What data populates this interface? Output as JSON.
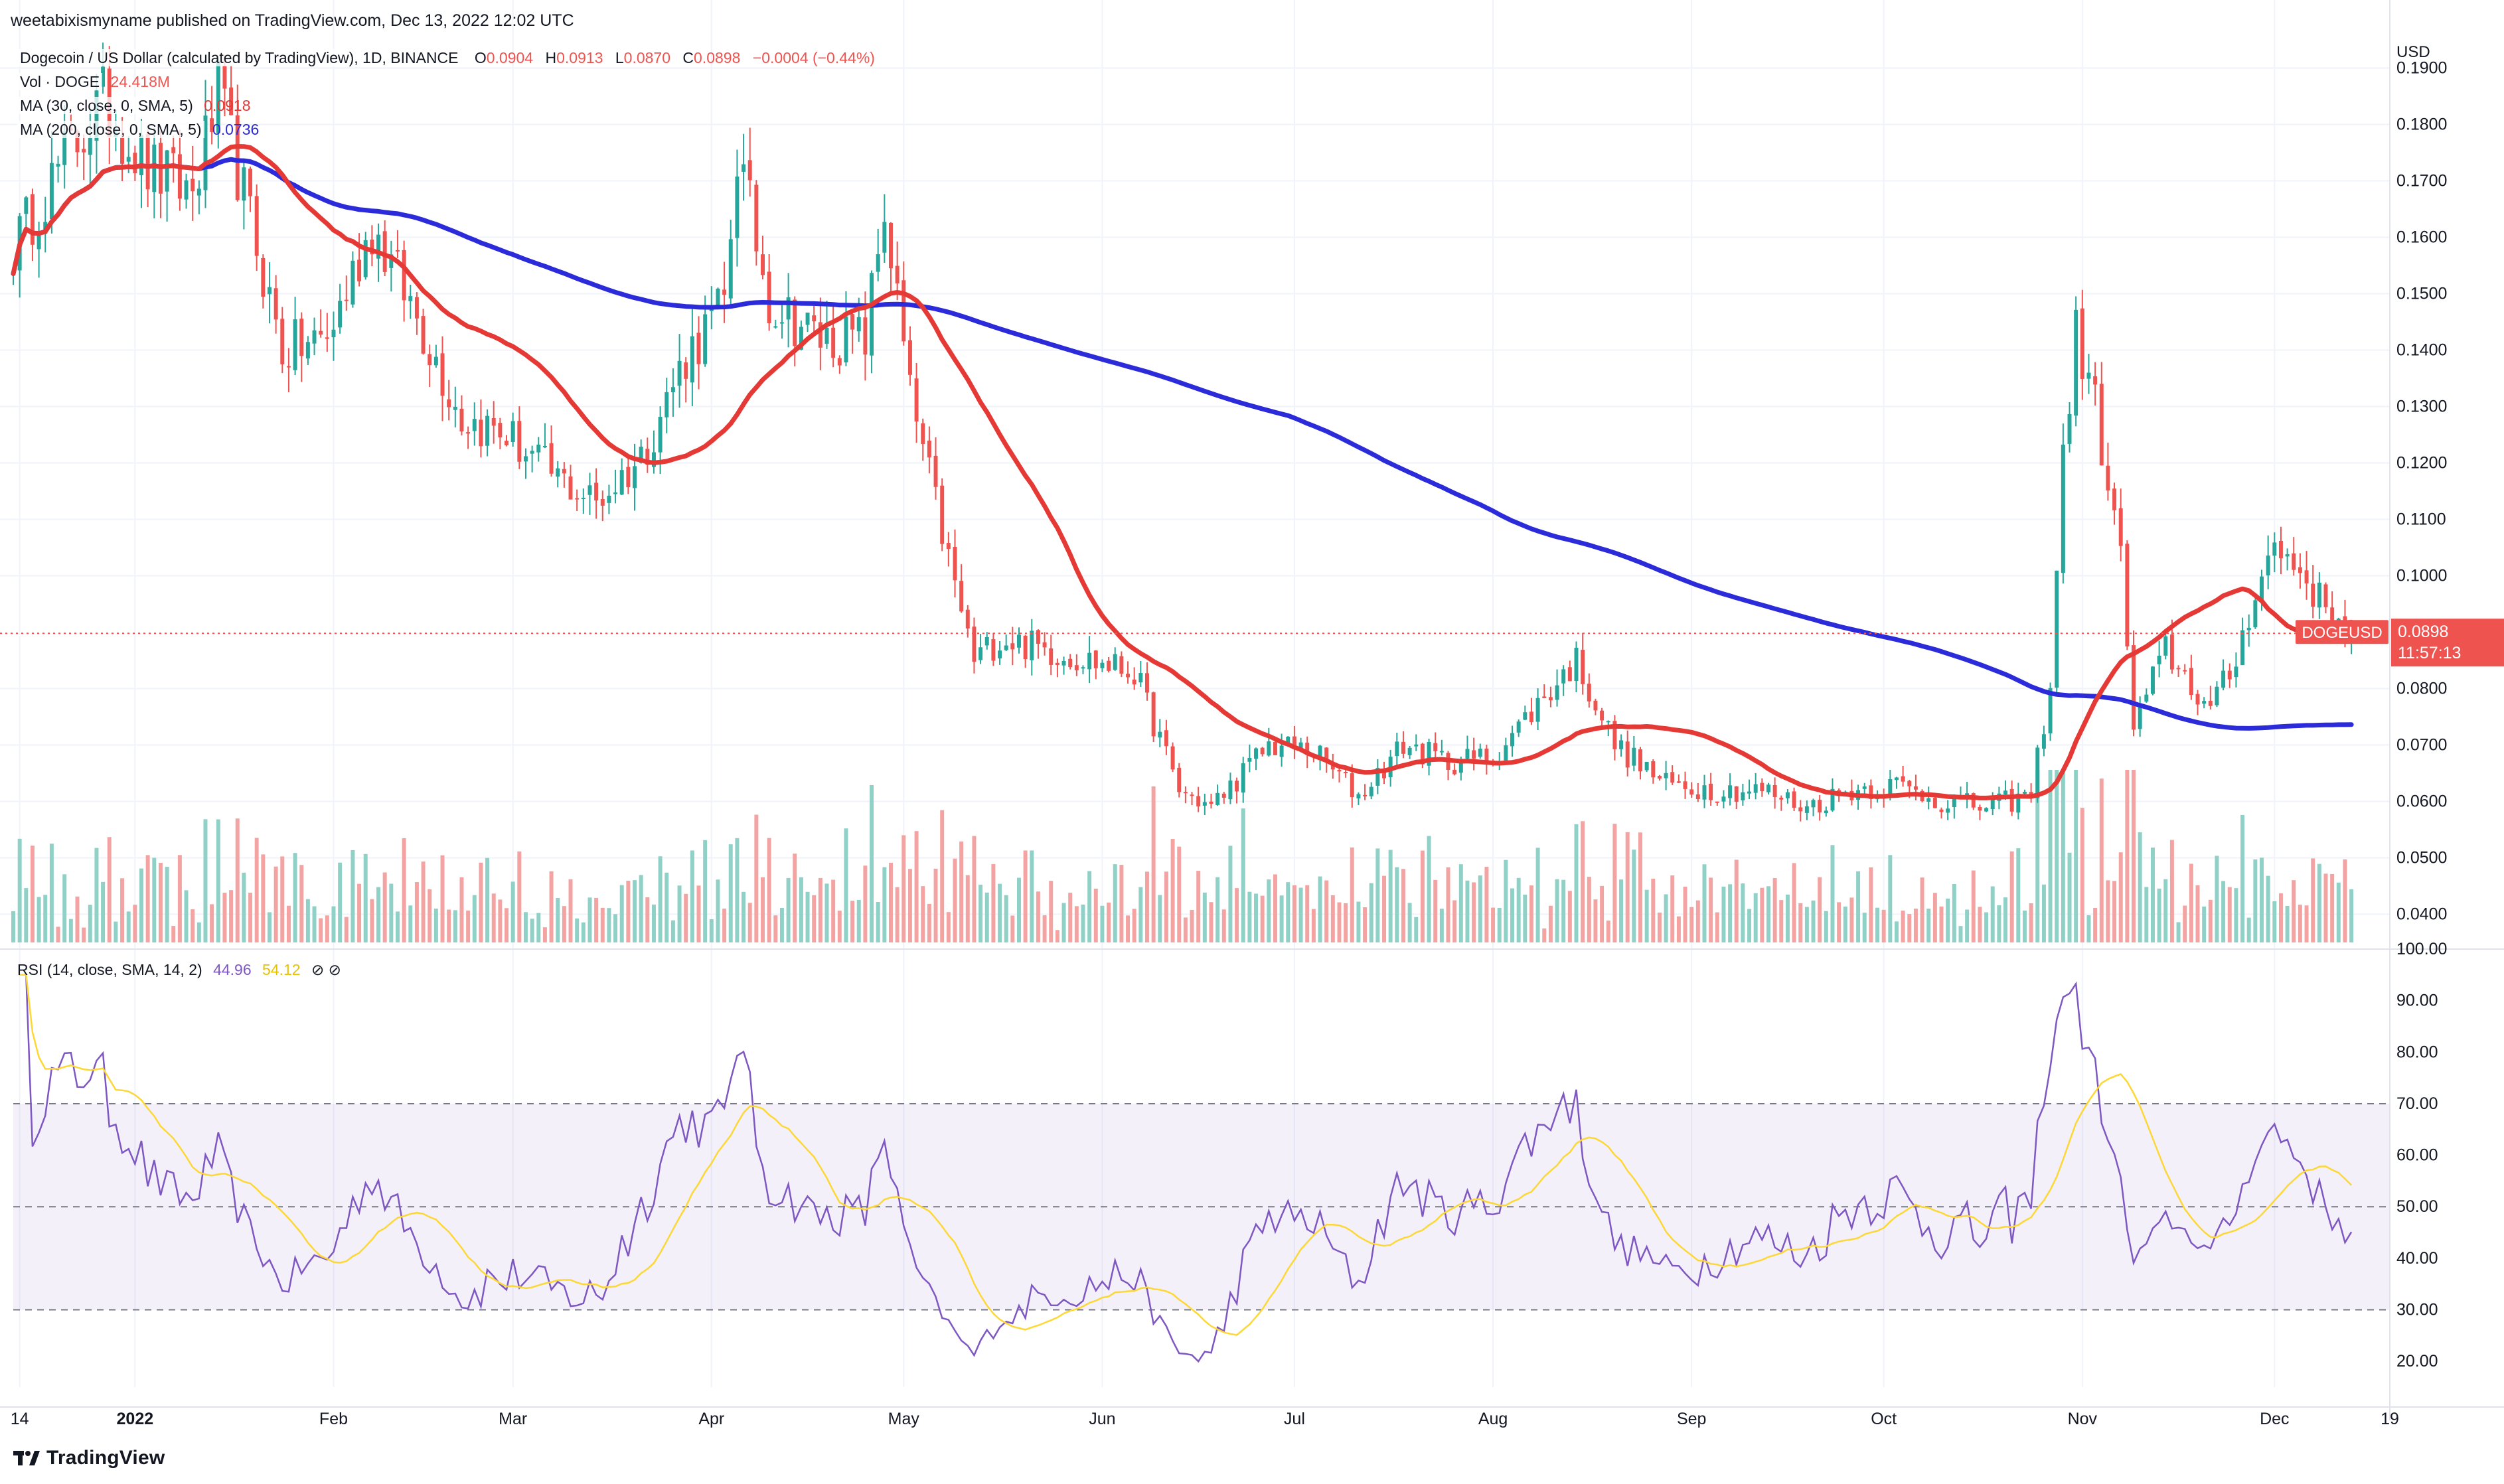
{
  "header": {
    "publisher": "weetabixismyname published on TradingView.com, Dec 13, 2022 12:02 UTC",
    "symbol_title": "Dogecoin / US Dollar (calculated by TradingView), 1D, BINANCE",
    "ohlc": {
      "o_label": "O",
      "o_value": "0.0904",
      "h_label": "H",
      "h_value": "0.0913",
      "l_label": "L",
      "l_value": "0.0870",
      "c_label": "C",
      "c_value": "0.0898",
      "change": "−0.0004 (−0.44%)"
    },
    "volume": {
      "label": "Vol · DOGE",
      "value": "24.418M"
    },
    "ma30": {
      "label": "MA (30, close, 0, SMA, 5)",
      "value": "0.0918"
    },
    "ma200": {
      "label": "MA (200, close, 0, SMA, 5)",
      "value": "0.0736"
    },
    "rsi": {
      "label": "RSI (14, close, SMA, 14, 2)",
      "value": "44.96",
      "sma_value": "54.12",
      "icons": "⊘ ⊘"
    }
  },
  "price_axis": {
    "currency": "USD",
    "ticks": [
      "0.1900",
      "0.1800",
      "0.1700",
      "0.1600",
      "0.1500",
      "0.1400",
      "0.1300",
      "0.1200",
      "0.1100",
      "0.1000",
      "0.0800",
      "0.0700",
      "0.0600",
      "0.0500",
      "0.0400"
    ],
    "last_price_label": "DOGEUSD",
    "last_price": "0.0898",
    "countdown": "11:57:13"
  },
  "rsi_axis": {
    "ticks": [
      "100.00",
      "90.00",
      "80.00",
      "70.00",
      "60.00",
      "50.00",
      "40.00",
      "30.00",
      "20.00"
    ]
  },
  "time_axis": {
    "ticks": [
      "14",
      "2022",
      "Feb",
      "Mar",
      "Apr",
      "May",
      "Jun",
      "Jul",
      "Aug",
      "Sep",
      "Oct",
      "Nov",
      "Dec",
      "19"
    ]
  },
  "branding": {
    "logo_text": "TradingView"
  },
  "colors": {
    "up": "#26a69a",
    "down": "#ef5350",
    "ma30": "#e53935",
    "ma200": "#2b2bd9",
    "rsi": "#7e57c2",
    "rsi_sma": "#fdd835",
    "rsi_band": "#7e57c2"
  },
  "chart_data": [
    {
      "type": "candlestick",
      "title": "Dogecoin / US Dollar (calculated by TradingView), 1D, BINANCE",
      "ylabel": "USD",
      "ylim": [
        0.035,
        0.195
      ],
      "x_range": [
        "2021-12-13",
        "2022-12-19"
      ],
      "last_close": 0.0898,
      "anchor_closes": [
        [
          "2021-12-13",
          0.158
        ],
        [
          "2021-12-20",
          0.172
        ],
        [
          "2021-12-27",
          0.184
        ],
        [
          "2022-01-03",
          0.172
        ],
        [
          "2022-01-10",
          0.168
        ],
        [
          "2022-01-14",
          0.185
        ],
        [
          "2022-01-17",
          0.172
        ],
        [
          "2022-01-24",
          0.14
        ],
        [
          "2022-01-31",
          0.142
        ],
        [
          "2022-02-07",
          0.162
        ],
        [
          "2022-02-14",
          0.146
        ],
        [
          "2022-02-21",
          0.128
        ],
        [
          "2022-02-28",
          0.125
        ],
        [
          "2022-03-07",
          0.118
        ],
        [
          "2022-03-14",
          0.113
        ],
        [
          "2022-03-21",
          0.121
        ],
        [
          "2022-03-28",
          0.139
        ],
        [
          "2022-04-03",
          0.148
        ],
        [
          "2022-04-05",
          0.175
        ],
        [
          "2022-04-10",
          0.149
        ],
        [
          "2022-04-18",
          0.142
        ],
        [
          "2022-04-25",
          0.142
        ],
        [
          "2022-04-28",
          0.165
        ],
        [
          "2022-05-02",
          0.132
        ],
        [
          "2022-05-09",
          0.098
        ],
        [
          "2022-05-12",
          0.085
        ],
        [
          "2022-05-16",
          0.089
        ],
        [
          "2022-05-30",
          0.085
        ],
        [
          "2022-06-06",
          0.083
        ],
        [
          "2022-06-13",
          0.062
        ],
        [
          "2022-06-18",
          0.059
        ],
        [
          "2022-06-27",
          0.07
        ],
        [
          "2022-07-04",
          0.069
        ],
        [
          "2022-07-11",
          0.061
        ],
        [
          "2022-07-18",
          0.07
        ],
        [
          "2022-07-25",
          0.067
        ],
        [
          "2022-08-01",
          0.068
        ],
        [
          "2022-08-14",
          0.085
        ],
        [
          "2022-08-20",
          0.07
        ],
        [
          "2022-08-28",
          0.063
        ],
        [
          "2022-09-05",
          0.062
        ],
        [
          "2022-09-12",
          0.062
        ],
        [
          "2022-09-19",
          0.059
        ],
        [
          "2022-09-26",
          0.062
        ],
        [
          "2022-10-03",
          0.063
        ],
        [
          "2022-10-10",
          0.06
        ],
        [
          "2022-10-17",
          0.059
        ],
        [
          "2022-10-24",
          0.061
        ],
        [
          "2022-10-27",
          0.081
        ],
        [
          "2022-10-29",
          0.121
        ],
        [
          "2022-10-31",
          0.143
        ],
        [
          "2022-11-03",
          0.13
        ],
        [
          "2022-11-07",
          0.103
        ],
        [
          "2022-11-09",
          0.073
        ],
        [
          "2022-11-14",
          0.087
        ],
        [
          "2022-11-21",
          0.076
        ],
        [
          "2022-11-25",
          0.085
        ],
        [
          "2022-11-28",
          0.098
        ],
        [
          "2022-12-01",
          0.105
        ],
        [
          "2022-12-05",
          0.101
        ],
        [
          "2022-12-09",
          0.094
        ],
        [
          "2022-12-13",
          0.0898
        ]
      ],
      "ma30_final": 0.0918,
      "ma200_final": 0.0736
    },
    {
      "type": "bar",
      "title": "Vol · DOGE",
      "last_value": "24.418M"
    },
    {
      "type": "line",
      "title": "RSI (14, close, SMA, 14, 2)",
      "ylim": [
        15,
        100
      ],
      "bands": [
        30,
        50,
        70
      ],
      "series": [
        {
          "name": "RSI",
          "last": 44.96
        },
        {
          "name": "RSI SMA",
          "last": 54.12
        }
      ]
    }
  ]
}
